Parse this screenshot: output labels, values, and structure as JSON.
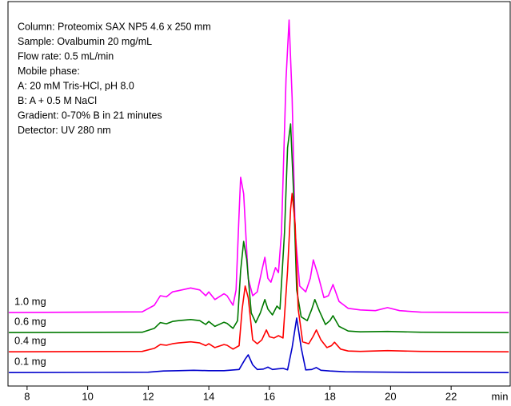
{
  "chart_data": {
    "type": "line",
    "annotation": [
      "Column: Proteomix SAX NP5 4.6 x 250 mm",
      "Sample: Ovalbumin 20 mg/mL",
      "Flow rate: 0.5 mL/min",
      "Mobile phase:",
      "A: 20 mM Tris-HCl, pH 8.0",
      "B: A + 0.5 M NaCl",
      "Gradient: 0-70% B in 21 minutes",
      "Detector: UV 280 nm"
    ],
    "xlabel": "min",
    "xlim": [
      7.37,
      23.95
    ],
    "xticks": [
      8,
      10,
      12,
      14,
      16,
      18,
      20,
      22
    ],
    "ylim": [
      0,
      100
    ],
    "series": [
      {
        "name": "1.0 mg",
        "color": "#ff00ff",
        "x": [
          7.4,
          11.8,
          12.2,
          12.4,
          12.6,
          12.8,
          13.0,
          13.4,
          13.7,
          13.9,
          14.0,
          14.2,
          14.5,
          14.6,
          14.8,
          14.9,
          15.0,
          15.05,
          15.15,
          15.3,
          15.45,
          15.6,
          15.75,
          15.85,
          15.95,
          16.05,
          16.2,
          16.3,
          16.4,
          16.55,
          16.65,
          16.75,
          16.85,
          17.0,
          17.2,
          17.35,
          17.45,
          17.6,
          17.8,
          17.95,
          18.1,
          18.3,
          18.6,
          19.0,
          19.5,
          19.9,
          20.3,
          21,
          23.9
        ],
        "values": [
          19.1,
          19.3,
          21,
          23.5,
          23.2,
          24.5,
          24.8,
          25.5,
          25,
          23.5,
          24.5,
          22.5,
          24,
          23.5,
          21,
          25,
          45,
          54.3,
          50,
          28,
          23.5,
          24.5,
          30,
          33.5,
          28,
          27,
          30.8,
          29.5,
          40,
          80,
          95.2,
          75,
          40,
          26,
          24.5,
          28,
          32.8,
          29,
          23,
          23.5,
          26.4,
          22,
          20.2,
          19.8,
          19.6,
          20.4,
          19.6,
          19.2,
          19.1
        ]
      },
      {
        "name": "0.6 mg",
        "color": "#007a00",
        "x": [
          7.4,
          11.8,
          12.2,
          12.4,
          12.6,
          12.8,
          13.0,
          13.4,
          13.7,
          13.9,
          14.0,
          14.2,
          14.5,
          14.6,
          14.8,
          14.95,
          15.05,
          15.15,
          15.25,
          15.4,
          15.55,
          15.7,
          15.85,
          15.95,
          16.1,
          16.25,
          16.35,
          16.5,
          16.6,
          16.7,
          16.8,
          16.9,
          17.05,
          17.25,
          17.4,
          17.5,
          17.65,
          17.85,
          18.0,
          18.1,
          18.3,
          18.6,
          19.0,
          19.9,
          21,
          23.9
        ],
        "values": [
          13.9,
          14,
          15,
          16.5,
          16.2,
          16.8,
          17,
          17.3,
          17,
          16,
          16.8,
          15.5,
          16.6,
          16.3,
          15,
          17,
          30,
          37.6,
          33,
          19,
          16.5,
          19,
          22.5,
          20,
          18.5,
          20.8,
          20,
          40,
          62,
          68.2,
          50,
          25,
          18,
          17,
          20,
          22.5,
          19.5,
          16,
          17,
          18.3,
          15.5,
          14.3,
          14.1,
          14.2,
          14,
          13.9
        ]
      },
      {
        "name": "0.4 mg",
        "color": "#ff0000",
        "x": [
          7.4,
          11.8,
          12.2,
          12.4,
          12.6,
          12.8,
          13.0,
          13.4,
          13.7,
          13.9,
          14.0,
          14.2,
          14.5,
          14.6,
          14.8,
          15.0,
          15.1,
          15.2,
          15.3,
          15.45,
          15.6,
          15.75,
          15.9,
          16.0,
          16.15,
          16.3,
          16.45,
          16.6,
          16.7,
          16.75,
          16.85,
          16.95,
          17.1,
          17.3,
          17.45,
          17.55,
          17.7,
          17.9,
          18.05,
          18.15,
          18.35,
          18.6,
          19.0,
          19.9,
          21,
          23.9
        ],
        "values": [
          8.9,
          9,
          9.8,
          10.8,
          10.6,
          11,
          11.2,
          11.5,
          11.2,
          10.5,
          11,
          10,
          10.8,
          10.6,
          9.6,
          10.5,
          20,
          26,
          23,
          12,
          11,
          12,
          14.6,
          12.8,
          12.5,
          13.1,
          12.5,
          30,
          46,
          50.1,
          42,
          20,
          11.5,
          11,
          13,
          14.6,
          12,
          10,
          10.5,
          11.4,
          9.6,
          9.1,
          9,
          9.2,
          9,
          8.9
        ]
      },
      {
        "name": "0.1 mg",
        "color": "#0000cc",
        "x": [
          7.4,
          12,
          12.5,
          13,
          13.5,
          14,
          14.5,
          15.0,
          15.2,
          15.3,
          15.45,
          15.6,
          15.8,
          15.95,
          16.1,
          16.3,
          16.45,
          16.6,
          16.75,
          16.9,
          17.05,
          17.2,
          17.4,
          17.55,
          17.7,
          18.0,
          18.5,
          20,
          23.9
        ],
        "values": [
          3.5,
          3.6,
          3.9,
          4,
          4.1,
          4,
          4,
          4.3,
          7,
          8.1,
          5.5,
          4.3,
          4.4,
          4.9,
          4.3,
          4.5,
          4.6,
          4.2,
          10,
          17.7,
          10,
          4.2,
          4.3,
          4.8,
          4.1,
          3.9,
          3.7,
          3.6,
          3.5
        ]
      }
    ]
  }
}
